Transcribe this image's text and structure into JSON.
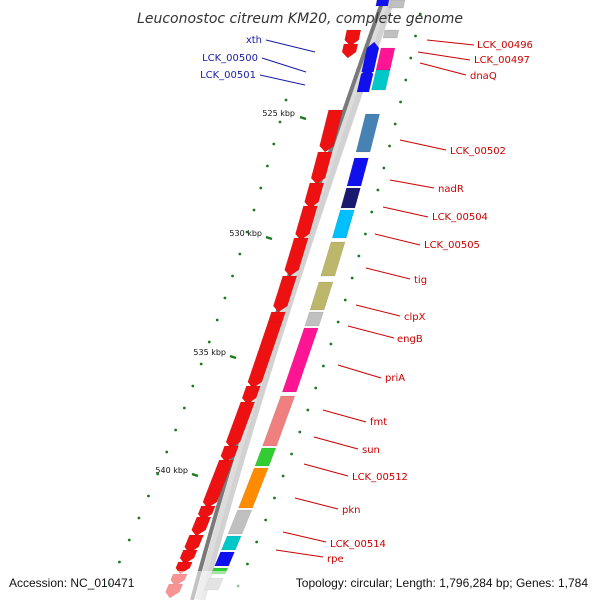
{
  "title": "Leuconostoc citreum KM20, complete genome",
  "accession": "Accession: NC_010471",
  "topology": "Topology: circular; Length: 1,796,284 bp; Genes: 1,784",
  "colors": {
    "backbone": "#7a7a7a",
    "forward_label": "#1a1aa8",
    "reverse_label": "#cc0000",
    "tick": "#1d7a1d",
    "cds_forward": "#1010ee",
    "cds_reverse": "#ee1111"
  },
  "ticks": [
    {
      "label": "525 kbp"
    },
    {
      "label": "530 kbp"
    },
    {
      "label": "535 kbp"
    },
    {
      "label": "540 kbp"
    }
  ],
  "forward_labels": [
    {
      "name": "xth"
    },
    {
      "name": "LCK_00500"
    },
    {
      "name": "LCK_00501"
    }
  ],
  "reverse_labels": [
    {
      "name": "LCK_00496"
    },
    {
      "name": "LCK_00497"
    },
    {
      "name": "dnaQ"
    },
    {
      "name": "LCK_00502"
    },
    {
      "name": "nadR"
    },
    {
      "name": "LCK_00504"
    },
    {
      "name": "LCK_00505"
    },
    {
      "name": "tig"
    },
    {
      "name": "clpX"
    },
    {
      "name": "engB"
    },
    {
      "name": "priA"
    },
    {
      "name": "fmt"
    },
    {
      "name": "sun"
    },
    {
      "name": "LCK_00512"
    },
    {
      "name": "pkn"
    },
    {
      "name": "LCK_00514"
    },
    {
      "name": "rpe"
    }
  ],
  "cog_colors": [
    "#ff1493",
    "#00c8c8",
    "#1010ee",
    "#4682b4",
    "#191970",
    "#00bfff",
    "#bdb76b",
    "#c0c0c0",
    "#f08080",
    "#32cd32",
    "#ff8c00",
    "#888888"
  ]
}
